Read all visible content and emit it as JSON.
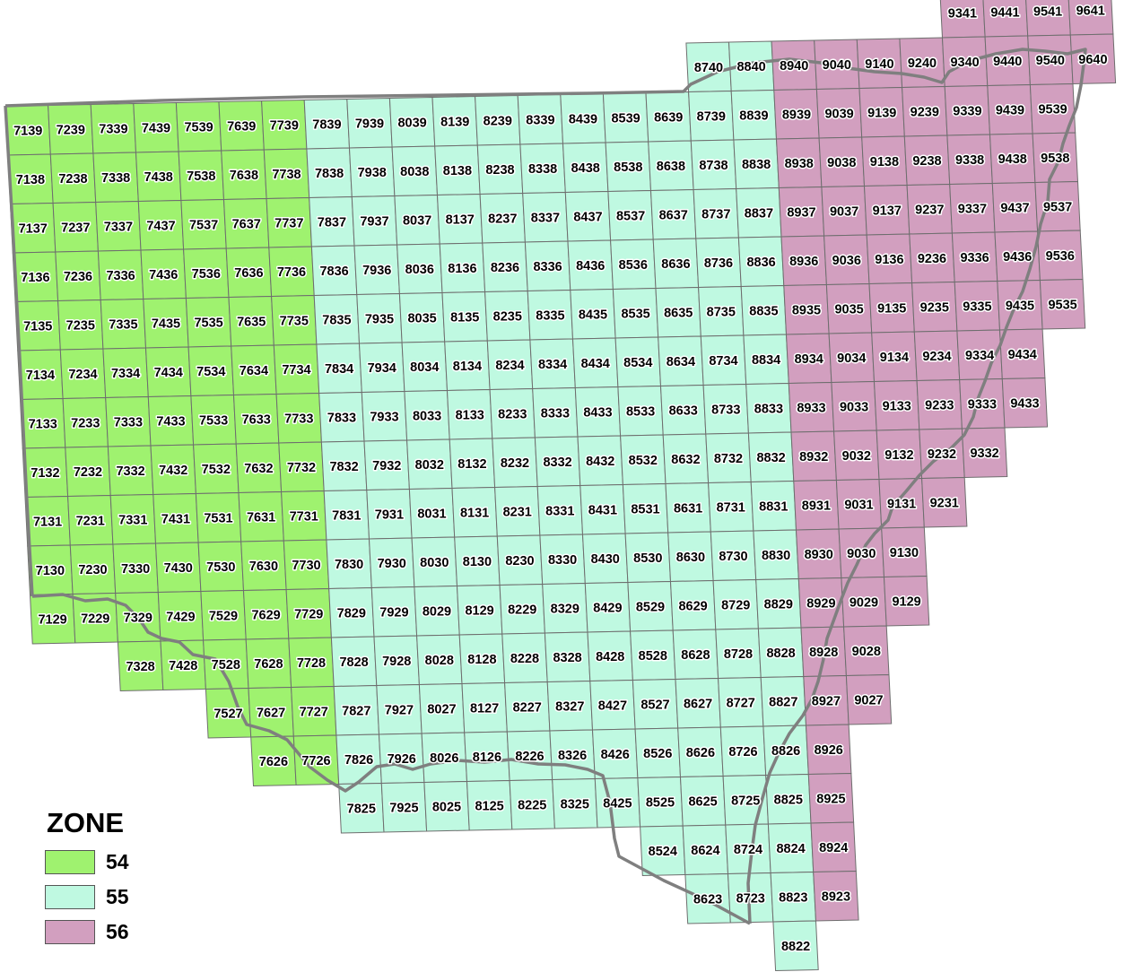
{
  "zone_colors": {
    "54": "#9ff26f",
    "55": "#bff9e1",
    "56": "#d29fbf"
  },
  "border_color": "#7f7f7f",
  "legend": {
    "title": "ZONE",
    "items": [
      {
        "zone": "54",
        "label": "54",
        "color": "#9ff26f"
      },
      {
        "zone": "55",
        "label": "55",
        "color": "#bff9e1"
      },
      {
        "zone": "56",
        "label": "56",
        "color": "#d29fbf"
      }
    ]
  },
  "tiles": [
    {
      "label": "9341",
      "zone": "56"
    },
    {
      "label": "9441",
      "zone": "56"
    },
    {
      "label": "9541",
      "zone": "56"
    },
    {
      "label": "9641",
      "zone": "56"
    },
    {
      "label": "8740",
      "zone": "55"
    },
    {
      "label": "8840",
      "zone": "55"
    },
    {
      "label": "8940",
      "zone": "56"
    },
    {
      "label": "9040",
      "zone": "56"
    },
    {
      "label": "9140",
      "zone": "56"
    },
    {
      "label": "9240",
      "zone": "56"
    },
    {
      "label": "9340",
      "zone": "56"
    },
    {
      "label": "9440",
      "zone": "56"
    },
    {
      "label": "9540",
      "zone": "56"
    },
    {
      "label": "9640",
      "zone": "56"
    },
    {
      "label": "7139",
      "zone": "54"
    },
    {
      "label": "7239",
      "zone": "54"
    },
    {
      "label": "7339",
      "zone": "54"
    },
    {
      "label": "7439",
      "zone": "54"
    },
    {
      "label": "7539",
      "zone": "54"
    },
    {
      "label": "7639",
      "zone": "54"
    },
    {
      "label": "7739",
      "zone": "54"
    },
    {
      "label": "7839",
      "zone": "55"
    },
    {
      "label": "7939",
      "zone": "55"
    },
    {
      "label": "8039",
      "zone": "55"
    },
    {
      "label": "8139",
      "zone": "55"
    },
    {
      "label": "8239",
      "zone": "55"
    },
    {
      "label": "8339",
      "zone": "55"
    },
    {
      "label": "8439",
      "zone": "55"
    },
    {
      "label": "8539",
      "zone": "55"
    },
    {
      "label": "8639",
      "zone": "55"
    },
    {
      "label": "8739",
      "zone": "55"
    },
    {
      "label": "8839",
      "zone": "55"
    },
    {
      "label": "8939",
      "zone": "56"
    },
    {
      "label": "9039",
      "zone": "56"
    },
    {
      "label": "9139",
      "zone": "56"
    },
    {
      "label": "9239",
      "zone": "56"
    },
    {
      "label": "9339",
      "zone": "56"
    },
    {
      "label": "9439",
      "zone": "56"
    },
    {
      "label": "9539",
      "zone": "56"
    },
    {
      "label": "7138",
      "zone": "54"
    },
    {
      "label": "7238",
      "zone": "54"
    },
    {
      "label": "7338",
      "zone": "54"
    },
    {
      "label": "7438",
      "zone": "54"
    },
    {
      "label": "7538",
      "zone": "54"
    },
    {
      "label": "7638",
      "zone": "54"
    },
    {
      "label": "7738",
      "zone": "54"
    },
    {
      "label": "7838",
      "zone": "55"
    },
    {
      "label": "7938",
      "zone": "55"
    },
    {
      "label": "8038",
      "zone": "55"
    },
    {
      "label": "8138",
      "zone": "55"
    },
    {
      "label": "8238",
      "zone": "55"
    },
    {
      "label": "8338",
      "zone": "55"
    },
    {
      "label": "8438",
      "zone": "55"
    },
    {
      "label": "8538",
      "zone": "55"
    },
    {
      "label": "8638",
      "zone": "55"
    },
    {
      "label": "8738",
      "zone": "55"
    },
    {
      "label": "8838",
      "zone": "55"
    },
    {
      "label": "8938",
      "zone": "56"
    },
    {
      "label": "9038",
      "zone": "56"
    },
    {
      "label": "9138",
      "zone": "56"
    },
    {
      "label": "9238",
      "zone": "56"
    },
    {
      "label": "9338",
      "zone": "56"
    },
    {
      "label": "9438",
      "zone": "56"
    },
    {
      "label": "9538",
      "zone": "56"
    },
    {
      "label": "7137",
      "zone": "54"
    },
    {
      "label": "7237",
      "zone": "54"
    },
    {
      "label": "7337",
      "zone": "54"
    },
    {
      "label": "7437",
      "zone": "54"
    },
    {
      "label": "7537",
      "zone": "54"
    },
    {
      "label": "7637",
      "zone": "54"
    },
    {
      "label": "7737",
      "zone": "54"
    },
    {
      "label": "7837",
      "zone": "55"
    },
    {
      "label": "7937",
      "zone": "55"
    },
    {
      "label": "8037",
      "zone": "55"
    },
    {
      "label": "8137",
      "zone": "55"
    },
    {
      "label": "8237",
      "zone": "55"
    },
    {
      "label": "8337",
      "zone": "55"
    },
    {
      "label": "8437",
      "zone": "55"
    },
    {
      "label": "8537",
      "zone": "55"
    },
    {
      "label": "8637",
      "zone": "55"
    },
    {
      "label": "8737",
      "zone": "55"
    },
    {
      "label": "8837",
      "zone": "55"
    },
    {
      "label": "8937",
      "zone": "56"
    },
    {
      "label": "9037",
      "zone": "56"
    },
    {
      "label": "9137",
      "zone": "56"
    },
    {
      "label": "9237",
      "zone": "56"
    },
    {
      "label": "9337",
      "zone": "56"
    },
    {
      "label": "9437",
      "zone": "56"
    },
    {
      "label": "9537",
      "zone": "56"
    },
    {
      "label": "7136",
      "zone": "54"
    },
    {
      "label": "7236",
      "zone": "54"
    },
    {
      "label": "7336",
      "zone": "54"
    },
    {
      "label": "7436",
      "zone": "54"
    },
    {
      "label": "7536",
      "zone": "54"
    },
    {
      "label": "7636",
      "zone": "54"
    },
    {
      "label": "7736",
      "zone": "54"
    },
    {
      "label": "7836",
      "zone": "55"
    },
    {
      "label": "7936",
      "zone": "55"
    },
    {
      "label": "8036",
      "zone": "55"
    },
    {
      "label": "8136",
      "zone": "55"
    },
    {
      "label": "8236",
      "zone": "55"
    },
    {
      "label": "8336",
      "zone": "55"
    },
    {
      "label": "8436",
      "zone": "55"
    },
    {
      "label": "8536",
      "zone": "55"
    },
    {
      "label": "8636",
      "zone": "55"
    },
    {
      "label": "8736",
      "zone": "55"
    },
    {
      "label": "8836",
      "zone": "55"
    },
    {
      "label": "8936",
      "zone": "56"
    },
    {
      "label": "9036",
      "zone": "56"
    },
    {
      "label": "9136",
      "zone": "56"
    },
    {
      "label": "9236",
      "zone": "56"
    },
    {
      "label": "9336",
      "zone": "56"
    },
    {
      "label": "9436",
      "zone": "56"
    },
    {
      "label": "9536",
      "zone": "56"
    },
    {
      "label": "7135",
      "zone": "54"
    },
    {
      "label": "7235",
      "zone": "54"
    },
    {
      "label": "7335",
      "zone": "54"
    },
    {
      "label": "7435",
      "zone": "54"
    },
    {
      "label": "7535",
      "zone": "54"
    },
    {
      "label": "7635",
      "zone": "54"
    },
    {
      "label": "7735",
      "zone": "54"
    },
    {
      "label": "7835",
      "zone": "55"
    },
    {
      "label": "7935",
      "zone": "55"
    },
    {
      "label": "8035",
      "zone": "55"
    },
    {
      "label": "8135",
      "zone": "55"
    },
    {
      "label": "8235",
      "zone": "55"
    },
    {
      "label": "8335",
      "zone": "55"
    },
    {
      "label": "8435",
      "zone": "55"
    },
    {
      "label": "8535",
      "zone": "55"
    },
    {
      "label": "8635",
      "zone": "55"
    },
    {
      "label": "8735",
      "zone": "55"
    },
    {
      "label": "8835",
      "zone": "55"
    },
    {
      "label": "8935",
      "zone": "56"
    },
    {
      "label": "9035",
      "zone": "56"
    },
    {
      "label": "9135",
      "zone": "56"
    },
    {
      "label": "9235",
      "zone": "56"
    },
    {
      "label": "9335",
      "zone": "56"
    },
    {
      "label": "9435",
      "zone": "56"
    },
    {
      "label": "9535",
      "zone": "56"
    },
    {
      "label": "7134",
      "zone": "54"
    },
    {
      "label": "7234",
      "zone": "54"
    },
    {
      "label": "7334",
      "zone": "54"
    },
    {
      "label": "7434",
      "zone": "54"
    },
    {
      "label": "7534",
      "zone": "54"
    },
    {
      "label": "7634",
      "zone": "54"
    },
    {
      "label": "7734",
      "zone": "54"
    },
    {
      "label": "7834",
      "zone": "55"
    },
    {
      "label": "7934",
      "zone": "55"
    },
    {
      "label": "8034",
      "zone": "55"
    },
    {
      "label": "8134",
      "zone": "55"
    },
    {
      "label": "8234",
      "zone": "55"
    },
    {
      "label": "8334",
      "zone": "55"
    },
    {
      "label": "8434",
      "zone": "55"
    },
    {
      "label": "8534",
      "zone": "55"
    },
    {
      "label": "8634",
      "zone": "55"
    },
    {
      "label": "8734",
      "zone": "55"
    },
    {
      "label": "8834",
      "zone": "55"
    },
    {
      "label": "8934",
      "zone": "56"
    },
    {
      "label": "9034",
      "zone": "56"
    },
    {
      "label": "9134",
      "zone": "56"
    },
    {
      "label": "9234",
      "zone": "56"
    },
    {
      "label": "9334",
      "zone": "56"
    },
    {
      "label": "9434",
      "zone": "56"
    },
    {
      "label": "7133",
      "zone": "54"
    },
    {
      "label": "7233",
      "zone": "54"
    },
    {
      "label": "7333",
      "zone": "54"
    },
    {
      "label": "7433",
      "zone": "54"
    },
    {
      "label": "7533",
      "zone": "54"
    },
    {
      "label": "7633",
      "zone": "54"
    },
    {
      "label": "7733",
      "zone": "54"
    },
    {
      "label": "7833",
      "zone": "55"
    },
    {
      "label": "7933",
      "zone": "55"
    },
    {
      "label": "8033",
      "zone": "55"
    },
    {
      "label": "8133",
      "zone": "55"
    },
    {
      "label": "8233",
      "zone": "55"
    },
    {
      "label": "8333",
      "zone": "55"
    },
    {
      "label": "8433",
      "zone": "55"
    },
    {
      "label": "8533",
      "zone": "55"
    },
    {
      "label": "8633",
      "zone": "55"
    },
    {
      "label": "8733",
      "zone": "55"
    },
    {
      "label": "8833",
      "zone": "55"
    },
    {
      "label": "8933",
      "zone": "56"
    },
    {
      "label": "9033",
      "zone": "56"
    },
    {
      "label": "9133",
      "zone": "56"
    },
    {
      "label": "9233",
      "zone": "56"
    },
    {
      "label": "9333",
      "zone": "56"
    },
    {
      "label": "9433",
      "zone": "56"
    },
    {
      "label": "7132",
      "zone": "54"
    },
    {
      "label": "7232",
      "zone": "54"
    },
    {
      "label": "7332",
      "zone": "54"
    },
    {
      "label": "7432",
      "zone": "54"
    },
    {
      "label": "7532",
      "zone": "54"
    },
    {
      "label": "7632",
      "zone": "54"
    },
    {
      "label": "7732",
      "zone": "54"
    },
    {
      "label": "7832",
      "zone": "55"
    },
    {
      "label": "7932",
      "zone": "55"
    },
    {
      "label": "8032",
      "zone": "55"
    },
    {
      "label": "8132",
      "zone": "55"
    },
    {
      "label": "8232",
      "zone": "55"
    },
    {
      "label": "8332",
      "zone": "55"
    },
    {
      "label": "8432",
      "zone": "55"
    },
    {
      "label": "8532",
      "zone": "55"
    },
    {
      "label": "8632",
      "zone": "55"
    },
    {
      "label": "8732",
      "zone": "55"
    },
    {
      "label": "8832",
      "zone": "55"
    },
    {
      "label": "8932",
      "zone": "56"
    },
    {
      "label": "9032",
      "zone": "56"
    },
    {
      "label": "9132",
      "zone": "56"
    },
    {
      "label": "9232",
      "zone": "56"
    },
    {
      "label": "9332",
      "zone": "56"
    },
    {
      "label": "7131",
      "zone": "54"
    },
    {
      "label": "7231",
      "zone": "54"
    },
    {
      "label": "7331",
      "zone": "54"
    },
    {
      "label": "7431",
      "zone": "54"
    },
    {
      "label": "7531",
      "zone": "54"
    },
    {
      "label": "7631",
      "zone": "54"
    },
    {
      "label": "7731",
      "zone": "54"
    },
    {
      "label": "7831",
      "zone": "55"
    },
    {
      "label": "7931",
      "zone": "55"
    },
    {
      "label": "8031",
      "zone": "55"
    },
    {
      "label": "8131",
      "zone": "55"
    },
    {
      "label": "8231",
      "zone": "55"
    },
    {
      "label": "8331",
      "zone": "55"
    },
    {
      "label": "8431",
      "zone": "55"
    },
    {
      "label": "8531",
      "zone": "55"
    },
    {
      "label": "8631",
      "zone": "55"
    },
    {
      "label": "8731",
      "zone": "55"
    },
    {
      "label": "8831",
      "zone": "55"
    },
    {
      "label": "8931",
      "zone": "56"
    },
    {
      "label": "9031",
      "zone": "56"
    },
    {
      "label": "9131",
      "zone": "56"
    },
    {
      "label": "9231",
      "zone": "56"
    },
    {
      "label": "7130",
      "zone": "54"
    },
    {
      "label": "7230",
      "zone": "54"
    },
    {
      "label": "7330",
      "zone": "54"
    },
    {
      "label": "7430",
      "zone": "54"
    },
    {
      "label": "7530",
      "zone": "54"
    },
    {
      "label": "7630",
      "zone": "54"
    },
    {
      "label": "7730",
      "zone": "54"
    },
    {
      "label": "7830",
      "zone": "55"
    },
    {
      "label": "7930",
      "zone": "55"
    },
    {
      "label": "8030",
      "zone": "55"
    },
    {
      "label": "8130",
      "zone": "55"
    },
    {
      "label": "8230",
      "zone": "55"
    },
    {
      "label": "8330",
      "zone": "55"
    },
    {
      "label": "8430",
      "zone": "55"
    },
    {
      "label": "8530",
      "zone": "55"
    },
    {
      "label": "8630",
      "zone": "55"
    },
    {
      "label": "8730",
      "zone": "55"
    },
    {
      "label": "8830",
      "zone": "55"
    },
    {
      "label": "8930",
      "zone": "56"
    },
    {
      "label": "9030",
      "zone": "56"
    },
    {
      "label": "9130",
      "zone": "56"
    },
    {
      "label": "7129",
      "zone": "54"
    },
    {
      "label": "7229",
      "zone": "54"
    },
    {
      "label": "7329",
      "zone": "54"
    },
    {
      "label": "7429",
      "zone": "54"
    },
    {
      "label": "7529",
      "zone": "54"
    },
    {
      "label": "7629",
      "zone": "54"
    },
    {
      "label": "7729",
      "zone": "54"
    },
    {
      "label": "7829",
      "zone": "55"
    },
    {
      "label": "7929",
      "zone": "55"
    },
    {
      "label": "8029",
      "zone": "55"
    },
    {
      "label": "8129",
      "zone": "55"
    },
    {
      "label": "8229",
      "zone": "55"
    },
    {
      "label": "8329",
      "zone": "55"
    },
    {
      "label": "8429",
      "zone": "55"
    },
    {
      "label": "8529",
      "zone": "55"
    },
    {
      "label": "8629",
      "zone": "55"
    },
    {
      "label": "8729",
      "zone": "55"
    },
    {
      "label": "8829",
      "zone": "55"
    },
    {
      "label": "8929",
      "zone": "56"
    },
    {
      "label": "9029",
      "zone": "56"
    },
    {
      "label": "9129",
      "zone": "56"
    },
    {
      "label": "7328",
      "zone": "54"
    },
    {
      "label": "7428",
      "zone": "54"
    },
    {
      "label": "7528",
      "zone": "54"
    },
    {
      "label": "7628",
      "zone": "54"
    },
    {
      "label": "7728",
      "zone": "54"
    },
    {
      "label": "7828",
      "zone": "55"
    },
    {
      "label": "7928",
      "zone": "55"
    },
    {
      "label": "8028",
      "zone": "55"
    },
    {
      "label": "8128",
      "zone": "55"
    },
    {
      "label": "8228",
      "zone": "55"
    },
    {
      "label": "8328",
      "zone": "55"
    },
    {
      "label": "8428",
      "zone": "55"
    },
    {
      "label": "8528",
      "zone": "55"
    },
    {
      "label": "8628",
      "zone": "55"
    },
    {
      "label": "8728",
      "zone": "55"
    },
    {
      "label": "8828",
      "zone": "55"
    },
    {
      "label": "8928",
      "zone": "56"
    },
    {
      "label": "9028",
      "zone": "56"
    },
    {
      "label": "7527",
      "zone": "54"
    },
    {
      "label": "7627",
      "zone": "54"
    },
    {
      "label": "7727",
      "zone": "54"
    },
    {
      "label": "7827",
      "zone": "55"
    },
    {
      "label": "7927",
      "zone": "55"
    },
    {
      "label": "8027",
      "zone": "55"
    },
    {
      "label": "8127",
      "zone": "55"
    },
    {
      "label": "8227",
      "zone": "55"
    },
    {
      "label": "8327",
      "zone": "55"
    },
    {
      "label": "8427",
      "zone": "55"
    },
    {
      "label": "8527",
      "zone": "55"
    },
    {
      "label": "8627",
      "zone": "55"
    },
    {
      "label": "8727",
      "zone": "55"
    },
    {
      "label": "8827",
      "zone": "55"
    },
    {
      "label": "8927",
      "zone": "56"
    },
    {
      "label": "9027",
      "zone": "56"
    },
    {
      "label": "7626",
      "zone": "54"
    },
    {
      "label": "7726",
      "zone": "54"
    },
    {
      "label": "7826",
      "zone": "55"
    },
    {
      "label": "7926",
      "zone": "55"
    },
    {
      "label": "8026",
      "zone": "55"
    },
    {
      "label": "8126",
      "zone": "55"
    },
    {
      "label": "8226",
      "zone": "55"
    },
    {
      "label": "8326",
      "zone": "55"
    },
    {
      "label": "8426",
      "zone": "55"
    },
    {
      "label": "8526",
      "zone": "55"
    },
    {
      "label": "8626",
      "zone": "55"
    },
    {
      "label": "8726",
      "zone": "55"
    },
    {
      "label": "8826",
      "zone": "55"
    },
    {
      "label": "8926",
      "zone": "56"
    },
    {
      "label": "7825",
      "zone": "55"
    },
    {
      "label": "7925",
      "zone": "55"
    },
    {
      "label": "8025",
      "zone": "55"
    },
    {
      "label": "8125",
      "zone": "55"
    },
    {
      "label": "8225",
      "zone": "55"
    },
    {
      "label": "8325",
      "zone": "55"
    },
    {
      "label": "8425",
      "zone": "55"
    },
    {
      "label": "8525",
      "zone": "55"
    },
    {
      "label": "8625",
      "zone": "55"
    },
    {
      "label": "8725",
      "zone": "55"
    },
    {
      "label": "8825",
      "zone": "55"
    },
    {
      "label": "8925",
      "zone": "56"
    },
    {
      "label": "8524",
      "zone": "55"
    },
    {
      "label": "8624",
      "zone": "55"
    },
    {
      "label": "8724",
      "zone": "55"
    },
    {
      "label": "8824",
      "zone": "55"
    },
    {
      "label": "8924",
      "zone": "56"
    },
    {
      "label": "8623",
      "zone": "55"
    },
    {
      "label": "8723",
      "zone": "55"
    },
    {
      "label": "8823",
      "zone": "55"
    },
    {
      "label": "8923",
      "zone": "56"
    },
    {
      "label": "8822",
      "zone": "55"
    }
  ]
}
